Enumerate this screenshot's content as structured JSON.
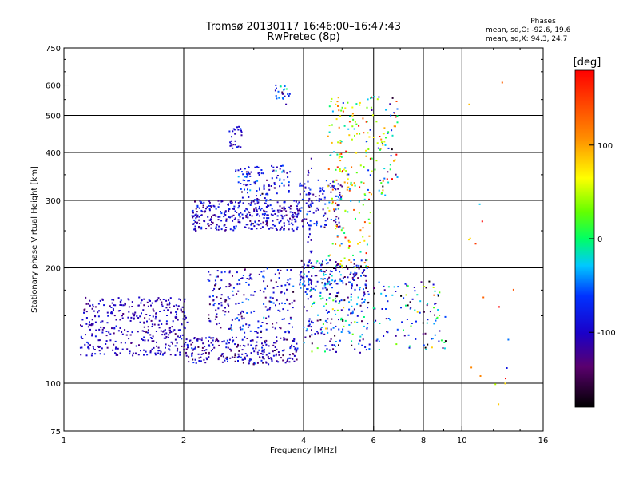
{
  "title": {
    "line1": "Tromsø 20130117 16:46:00–16:47:43",
    "line2": "RwPretec (8p)"
  },
  "stats": {
    "heading": "Phases",
    "o_line": "mean, sd,O: -92.6, 19.6",
    "x_line": "mean, sd,X:  94.3, 24.7"
  },
  "colorbar": {
    "label": "[deg]",
    "ticks": [
      "100",
      "0",
      "-100"
    ],
    "tick_values": [
      100,
      0,
      -100
    ],
    "range": [
      -180,
      180
    ]
  },
  "chart_data": {
    "type": "scatter",
    "xlabel": "Frequency [MHz]",
    "ylabel": "Stationary phase Virtual Height [km]",
    "xscale": "log",
    "yscale": "log",
    "xlim": [
      1,
      16
    ],
    "ylim": [
      75,
      750
    ],
    "x_ticks": [
      1,
      2,
      4,
      6,
      8,
      10,
      16
    ],
    "x_tick_labels": [
      "1",
      "2",
      "4",
      "6",
      "8",
      "10",
      "16"
    ],
    "y_ticks": [
      75,
      100,
      200,
      300,
      400,
      500,
      600,
      750
    ],
    "y_tick_labels": [
      "75",
      "100",
      "200",
      "300",
      "400",
      "500",
      "600",
      "750"
    ],
    "grid": true,
    "clusters": [
      {
        "fmin": 1.1,
        "fmax": 2.05,
        "hmin": 118,
        "hmax": 168,
        "n": 380,
        "phase": -105,
        "sd": 15
      },
      {
        "fmin": 2.0,
        "fmax": 3.9,
        "hmin": 112,
        "hmax": 132,
        "n": 260,
        "phase": -110,
        "sd": 25
      },
      {
        "fmin": 2.1,
        "fmax": 3.9,
        "hmin": 250,
        "hmax": 300,
        "n": 330,
        "phase": -100,
        "sd": 22
      },
      {
        "fmin": 2.3,
        "fmax": 3.8,
        "hmin": 135,
        "hmax": 200,
        "n": 220,
        "phase": -95,
        "sd": 30
      },
      {
        "fmin": 2.7,
        "fmax": 3.7,
        "hmin": 300,
        "hmax": 370,
        "n": 110,
        "phase": -90,
        "sd": 30
      },
      {
        "fmin": 2.6,
        "fmax": 2.8,
        "hmin": 410,
        "hmax": 470,
        "n": 25,
        "phase": -95,
        "sd": 15
      },
      {
        "fmin": 3.4,
        "fmax": 3.7,
        "hmin": 530,
        "hmax": 600,
        "n": 25,
        "phase": -70,
        "sd": 50
      },
      {
        "fmin": 3.9,
        "fmax": 5.8,
        "hmin": 175,
        "hmax": 210,
        "n": 170,
        "phase": -90,
        "sd": 40
      },
      {
        "fmin": 3.9,
        "fmax": 5.0,
        "hmin": 255,
        "hmax": 340,
        "n": 110,
        "phase": -95,
        "sd": 30
      },
      {
        "fmin": 4.6,
        "fmax": 5.9,
        "hmin": 200,
        "hmax": 560,
        "n": 190,
        "phase": 60,
        "sd": 70
      },
      {
        "fmin": 4.0,
        "fmax": 5.9,
        "hmin": 120,
        "hmax": 175,
        "n": 160,
        "phase": -60,
        "sd": 70
      },
      {
        "fmin": 5.8,
        "fmax": 6.9,
        "hmin": 300,
        "hmax": 560,
        "n": 80,
        "phase": 30,
        "sd": 100
      },
      {
        "fmin": 6.0,
        "fmax": 9.2,
        "hmin": 122,
        "hmax": 185,
        "n": 110,
        "phase": -70,
        "sd": 70
      },
      {
        "fmin": 4.1,
        "fmax": 4.2,
        "hmin": 140,
        "hmax": 390,
        "n": 40,
        "phase": -95,
        "sd": 20
      },
      {
        "fmin": 10.3,
        "fmax": 13.5,
        "hmin": 80,
        "hmax": 620,
        "n": 18,
        "phase": 60,
        "sd": 90
      }
    ]
  }
}
